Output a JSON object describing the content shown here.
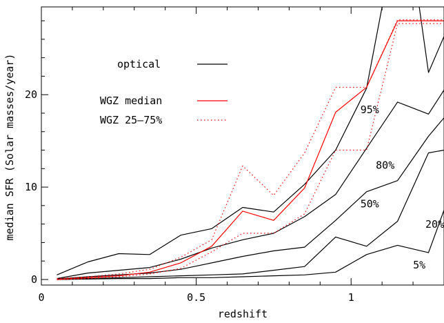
{
  "chart_data": {
    "type": "line",
    "title": "",
    "xlabel": "redshift",
    "ylabel": "median SFR (Solar masses/year)",
    "xlim": [
      0,
      1.3
    ],
    "ylim": [
      -0.6,
      29.5
    ],
    "xticks": [
      0,
      0.5,
      1
    ],
    "xtick_labels": [
      "0",
      "0.5",
      "1"
    ],
    "yticks": [
      0,
      10,
      20
    ],
    "ytick_labels": [
      "0",
      "10",
      "20"
    ],
    "grid": false,
    "legend": {
      "placement": "top-left",
      "entries": [
        {
          "label": "optical",
          "color": "#000000",
          "style": "solid"
        },
        {
          "label": "WGZ median",
          "color": "#ff0000",
          "style": "solid"
        },
        {
          "label": "WGZ 25–75%",
          "color": "#ff0000",
          "style": "dotted"
        }
      ]
    },
    "x": [
      0.05,
      0.15,
      0.25,
      0.35,
      0.45,
      0.55,
      0.65,
      0.75,
      0.85,
      0.95,
      1.05,
      1.15,
      1.25,
      1.3
    ],
    "series": [
      {
        "name": "optical",
        "color": "#000000",
        "style": "solid",
        "points": [
          [
            0.05,
            0.5
          ],
          [
            0.15,
            1.9
          ],
          [
            0.25,
            2.8
          ],
          [
            0.35,
            2.7
          ],
          [
            0.45,
            4.8
          ],
          [
            0.55,
            5.5
          ],
          [
            0.65,
            7.8
          ],
          [
            0.75,
            7.3
          ],
          [
            0.85,
            10.3
          ],
          [
            0.95,
            14.0
          ],
          [
            1.05,
            20.7
          ],
          [
            1.1,
            29.5
          ]
        ]
      },
      {
        "name": "optical-right",
        "color": "#000000",
        "style": "solid",
        "points": [
          [
            1.22,
            29.5
          ],
          [
            1.25,
            22.4
          ],
          [
            1.3,
            26.3
          ]
        ]
      },
      {
        "name": "95%",
        "color": "#000000",
        "style": "solid",
        "points": [
          [
            0.05,
            0.1
          ],
          [
            0.15,
            0.7
          ],
          [
            0.25,
            1.0
          ],
          [
            0.35,
            1.3
          ],
          [
            0.45,
            2.2
          ],
          [
            0.55,
            3.4
          ],
          [
            0.65,
            4.3
          ],
          [
            0.75,
            5.0
          ],
          [
            0.85,
            6.8
          ],
          [
            0.95,
            9.2
          ],
          [
            1.05,
            14.2
          ],
          [
            1.15,
            19.2
          ],
          [
            1.25,
            17.9
          ],
          [
            1.3,
            20.5
          ]
        ]
      },
      {
        "name": "80%",
        "color": "#000000",
        "style": "solid",
        "points": [
          [
            0.05,
            0.05
          ],
          [
            0.15,
            0.3
          ],
          [
            0.25,
            0.5
          ],
          [
            0.35,
            0.7
          ],
          [
            0.45,
            1.1
          ],
          [
            0.55,
            1.8
          ],
          [
            0.65,
            2.5
          ],
          [
            0.75,
            3.1
          ],
          [
            0.85,
            3.5
          ],
          [
            0.95,
            6.4
          ],
          [
            1.05,
            9.5
          ],
          [
            1.15,
            10.7
          ],
          [
            1.25,
            15.5
          ],
          [
            1.3,
            17.5
          ]
        ]
      },
      {
        "name": "50%",
        "color": "#000000",
        "style": "solid",
        "points": [
          [
            0.05,
            0.0
          ],
          [
            0.15,
            0.1
          ],
          [
            0.25,
            0.2
          ],
          [
            0.35,
            0.3
          ],
          [
            0.45,
            0.4
          ],
          [
            0.55,
            0.5
          ],
          [
            0.65,
            0.6
          ],
          [
            0.75,
            1.0
          ],
          [
            0.85,
            1.4
          ],
          [
            0.95,
            4.6
          ],
          [
            1.05,
            3.6
          ],
          [
            1.15,
            6.3
          ],
          [
            1.25,
            13.7
          ],
          [
            1.3,
            14.0
          ]
        ]
      },
      {
        "name": "20%",
        "color": "#000000",
        "style": "solid",
        "points": [
          [
            0.05,
            0.0
          ],
          [
            0.15,
            0.05
          ],
          [
            0.25,
            0.1
          ],
          [
            0.35,
            0.1
          ],
          [
            0.45,
            0.2
          ],
          [
            0.55,
            0.2
          ],
          [
            0.65,
            0.3
          ],
          [
            0.75,
            0.4
          ],
          [
            0.85,
            0.5
          ],
          [
            0.95,
            0.8
          ],
          [
            1.05,
            2.7
          ],
          [
            1.15,
            3.7
          ],
          [
            1.25,
            2.9
          ],
          [
            1.3,
            7.5
          ]
        ]
      },
      {
        "name": "WGZ median",
        "color": "#ff0000",
        "style": "solid",
        "points": [
          [
            0.05,
            0.0
          ],
          [
            0.15,
            0.2
          ],
          [
            0.25,
            0.4
          ],
          [
            0.35,
            0.8
          ],
          [
            0.45,
            1.8
          ],
          [
            0.55,
            3.6
          ],
          [
            0.65,
            7.4
          ],
          [
            0.75,
            6.4
          ],
          [
            0.85,
            9.9
          ],
          [
            0.95,
            18.1
          ],
          [
            1.05,
            20.8
          ],
          [
            1.15,
            28.0
          ],
          [
            1.25,
            28.0
          ],
          [
            1.3,
            28.0
          ]
        ]
      },
      {
        "name": "WGZ 75%",
        "color": "#ff0000",
        "style": "dotted",
        "points": [
          [
            0.05,
            0.1
          ],
          [
            0.15,
            0.3
          ],
          [
            0.25,
            0.6
          ],
          [
            0.35,
            1.1
          ],
          [
            0.45,
            2.4
          ],
          [
            0.55,
            4.3
          ],
          [
            0.65,
            12.3
          ],
          [
            0.75,
            9.1
          ],
          [
            0.85,
            13.7
          ],
          [
            0.95,
            20.8
          ],
          [
            1.05,
            20.8
          ],
          [
            1.15,
            28.1
          ],
          [
            1.25,
            28.1
          ],
          [
            1.3,
            28.1
          ]
        ]
      },
      {
        "name": "WGZ 25%",
        "color": "#ff0000",
        "style": "dotted",
        "points": [
          [
            0.05,
            0.0
          ],
          [
            0.15,
            0.1
          ],
          [
            0.25,
            0.3
          ],
          [
            0.35,
            0.6
          ],
          [
            0.45,
            1.2
          ],
          [
            0.55,
            3.0
          ],
          [
            0.65,
            5.0
          ],
          [
            0.75,
            5.0
          ],
          [
            0.85,
            7.1
          ],
          [
            0.95,
            14.0
          ],
          [
            1.05,
            14.0
          ],
          [
            1.15,
            27.7
          ],
          [
            1.25,
            27.7
          ],
          [
            1.3,
            27.7
          ]
        ]
      }
    ],
    "annotations": [
      {
        "text": "95%",
        "x": 1.03,
        "y": 18.0
      },
      {
        "text": "80%",
        "x": 1.08,
        "y": 12.0
      },
      {
        "text": "50%",
        "x": 1.03,
        "y": 7.8
      },
      {
        "text": "20%",
        "x": 1.24,
        "y": 5.6
      },
      {
        "text": "5%",
        "x": 1.2,
        "y": 1.2
      }
    ]
  }
}
